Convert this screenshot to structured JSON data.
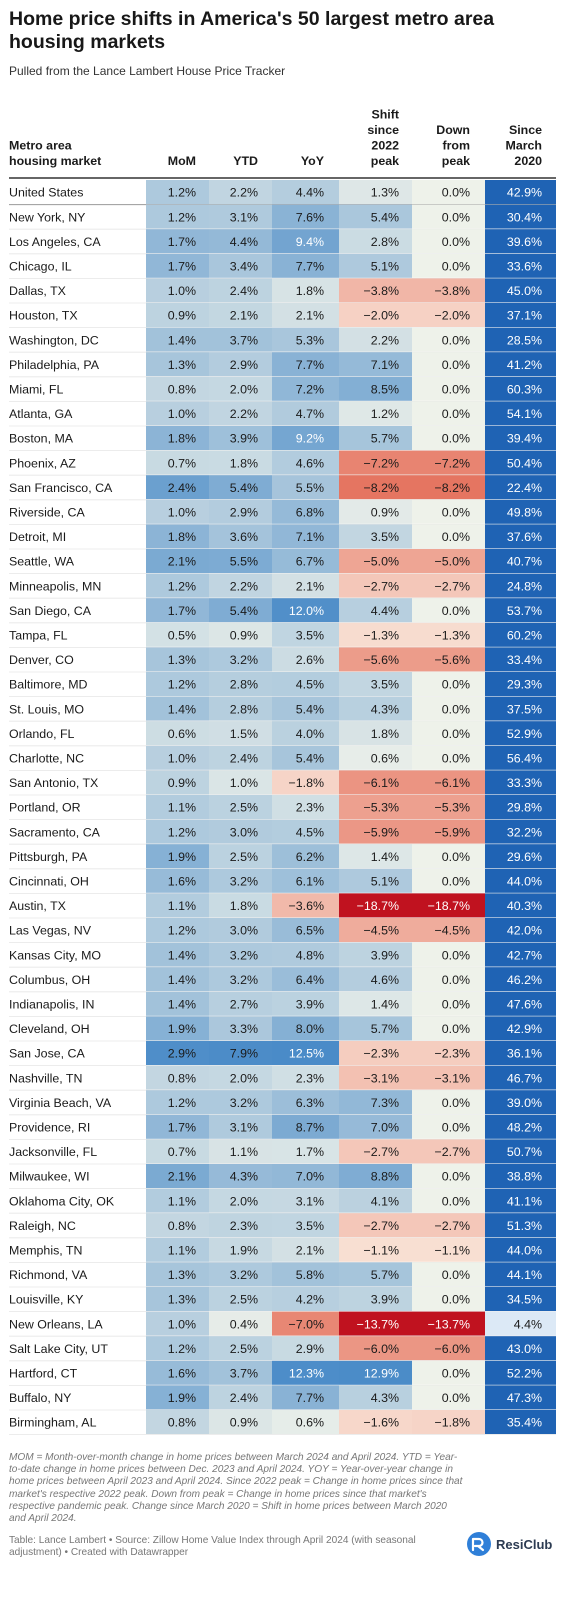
{
  "title": "Home price shifts in America's 50 largest metro area housing markets",
  "subtitle": "Pulled from the Lance Lambert House Price Tracker",
  "notes": "MOM = Month-over-month change in home prices between March 2024 and April 2024. YTD = Year-to-date change in home prices between Dec. 2023 and April 2024. YOY = Year-over-year change in home prices between April 2023 and April 2024. Since 2022 peak = Change in home prices since that market's respective 2022 peak. Down from peak = Change in home prices since that market's respective pandemic peak. Change since March 2020 = Shift in home prices between March 2020 and April 2024.",
  "source": "Table: Lance Lambert • Source: Zillow Home Value Index through April 2024 (with seasonal adjustment) • Created with Datawrapper",
  "logo": {
    "text": "ResiClub",
    "icon": "resiclub-logo-icon"
  },
  "colors": {
    "positive": "#4a8bc8",
    "negative": "#e05a44",
    "strong_negative": "#c0121f",
    "since_2020": "#1f63b4",
    "since_2020_light": "#dce9f6",
    "header_rule": "#333333",
    "row_rule": "#e6e6e6"
  },
  "chart_data": {
    "type": "table",
    "columns": [
      {
        "key": "market",
        "label": [
          "Metro area",
          "housing market"
        ]
      },
      {
        "key": "mom",
        "label": [
          "MoM"
        ]
      },
      {
        "key": "ytd",
        "label": [
          "YTD"
        ]
      },
      {
        "key": "yoy",
        "label": [
          "YoY"
        ]
      },
      {
        "key": "since2022",
        "label": [
          "Shift",
          "since",
          "2022",
          "peak"
        ]
      },
      {
        "key": "down",
        "label": [
          "Down",
          "from",
          "peak"
        ]
      },
      {
        "key": "since2020",
        "label": [
          "Since",
          "March",
          "2020"
        ]
      }
    ],
    "rows": [
      [
        "United States",
        "1.2%",
        "2.2%",
        "4.4%",
        "1.3%",
        "0.0%",
        "42.9%"
      ],
      [
        "New York, NY",
        "1.2%",
        "3.1%",
        "7.6%",
        "5.4%",
        "0.0%",
        "30.4%"
      ],
      [
        "Los Angeles, CA",
        "1.7%",
        "4.4%",
        "9.4%",
        "2.8%",
        "0.0%",
        "39.6%"
      ],
      [
        "Chicago, IL",
        "1.7%",
        "3.4%",
        "7.7%",
        "5.1%",
        "0.0%",
        "33.6%"
      ],
      [
        "Dallas, TX",
        "1.0%",
        "2.4%",
        "1.8%",
        "−3.8%",
        "−3.8%",
        "45.0%"
      ],
      [
        "Houston, TX",
        "0.9%",
        "2.1%",
        "2.1%",
        "−2.0%",
        "−2.0%",
        "37.1%"
      ],
      [
        "Washington, DC",
        "1.4%",
        "3.7%",
        "5.3%",
        "2.2%",
        "0.0%",
        "28.5%"
      ],
      [
        "Philadelphia, PA",
        "1.3%",
        "2.9%",
        "7.7%",
        "7.1%",
        "0.0%",
        "41.2%"
      ],
      [
        "Miami, FL",
        "0.8%",
        "2.0%",
        "7.2%",
        "8.5%",
        "0.0%",
        "60.3%"
      ],
      [
        "Atlanta, GA",
        "1.0%",
        "2.2%",
        "4.7%",
        "1.2%",
        "0.0%",
        "54.1%"
      ],
      [
        "Boston, MA",
        "1.8%",
        "3.9%",
        "9.2%",
        "5.7%",
        "0.0%",
        "39.4%"
      ],
      [
        "Phoenix, AZ",
        "0.7%",
        "1.8%",
        "4.6%",
        "−7.2%",
        "−7.2%",
        "50.4%"
      ],
      [
        "San Francisco, CA",
        "2.4%",
        "5.4%",
        "5.5%",
        "−8.2%",
        "−8.2%",
        "22.4%"
      ],
      [
        "Riverside, CA",
        "1.0%",
        "2.9%",
        "6.8%",
        "0.9%",
        "0.0%",
        "49.8%"
      ],
      [
        "Detroit, MI",
        "1.8%",
        "3.6%",
        "7.1%",
        "3.5%",
        "0.0%",
        "37.6%"
      ],
      [
        "Seattle, WA",
        "2.1%",
        "5.5%",
        "6.7%",
        "−5.0%",
        "−5.0%",
        "40.7%"
      ],
      [
        "Minneapolis, MN",
        "1.2%",
        "2.2%",
        "2.1%",
        "−2.7%",
        "−2.7%",
        "24.8%"
      ],
      [
        "San Diego, CA",
        "1.7%",
        "5.4%",
        "12.0%",
        "4.4%",
        "0.0%",
        "53.7%"
      ],
      [
        "Tampa, FL",
        "0.5%",
        "0.9%",
        "3.5%",
        "−1.3%",
        "−1.3%",
        "60.2%"
      ],
      [
        "Denver, CO",
        "1.3%",
        "3.2%",
        "2.6%",
        "−5.6%",
        "−5.6%",
        "33.4%"
      ],
      [
        "Baltimore, MD",
        "1.2%",
        "2.8%",
        "4.5%",
        "3.5%",
        "0.0%",
        "29.3%"
      ],
      [
        "St. Louis, MO",
        "1.4%",
        "2.8%",
        "5.4%",
        "4.3%",
        "0.0%",
        "37.5%"
      ],
      [
        "Orlando, FL",
        "0.6%",
        "1.5%",
        "4.0%",
        "1.8%",
        "0.0%",
        "52.9%"
      ],
      [
        "Charlotte, NC",
        "1.0%",
        "2.4%",
        "5.4%",
        "0.6%",
        "0.0%",
        "56.4%"
      ],
      [
        "San Antonio, TX",
        "0.9%",
        "1.0%",
        "−1.8%",
        "−6.1%",
        "−6.1%",
        "33.3%"
      ],
      [
        "Portland, OR",
        "1.1%",
        "2.5%",
        "2.3%",
        "−5.3%",
        "−5.3%",
        "29.8%"
      ],
      [
        "Sacramento, CA",
        "1.2%",
        "3.0%",
        "4.5%",
        "−5.9%",
        "−5.9%",
        "32.2%"
      ],
      [
        "Pittsburgh, PA",
        "1.9%",
        "2.5%",
        "6.2%",
        "1.4%",
        "0.0%",
        "29.6%"
      ],
      [
        "Cincinnati, OH",
        "1.6%",
        "3.2%",
        "6.1%",
        "5.1%",
        "0.0%",
        "44.0%"
      ],
      [
        "Austin, TX",
        "1.1%",
        "1.8%",
        "−3.6%",
        "−18.7%",
        "−18.7%",
        "40.3%"
      ],
      [
        "Las Vegas, NV",
        "1.2%",
        "3.0%",
        "6.5%",
        "−4.5%",
        "−4.5%",
        "42.0%"
      ],
      [
        "Kansas City, MO",
        "1.4%",
        "3.2%",
        "4.8%",
        "3.9%",
        "0.0%",
        "42.7%"
      ],
      [
        "Columbus, OH",
        "1.4%",
        "3.2%",
        "6.4%",
        "4.6%",
        "0.0%",
        "46.2%"
      ],
      [
        "Indianapolis, IN",
        "1.4%",
        "2.7%",
        "3.9%",
        "1.4%",
        "0.0%",
        "47.6%"
      ],
      [
        "Cleveland, OH",
        "1.9%",
        "3.3%",
        "8.0%",
        "5.7%",
        "0.0%",
        "42.9%"
      ],
      [
        "San Jose, CA",
        "2.9%",
        "7.9%",
        "12.5%",
        "−2.3%",
        "−2.3%",
        "36.1%"
      ],
      [
        "Nashville, TN",
        "0.8%",
        "2.0%",
        "2.3%",
        "−3.1%",
        "−3.1%",
        "46.7%"
      ],
      [
        "Virginia Beach, VA",
        "1.2%",
        "3.2%",
        "6.3%",
        "7.3%",
        "0.0%",
        "39.0%"
      ],
      [
        "Providence, RI",
        "1.7%",
        "3.1%",
        "8.7%",
        "7.0%",
        "0.0%",
        "48.2%"
      ],
      [
        "Jacksonville, FL",
        "0.7%",
        "1.1%",
        "1.7%",
        "−2.7%",
        "−2.7%",
        "50.7%"
      ],
      [
        "Milwaukee, WI",
        "2.1%",
        "4.3%",
        "7.0%",
        "8.8%",
        "0.0%",
        "38.8%"
      ],
      [
        "Oklahoma City, OK",
        "1.1%",
        "2.0%",
        "3.1%",
        "4.1%",
        "0.0%",
        "41.1%"
      ],
      [
        "Raleigh, NC",
        "0.8%",
        "2.3%",
        "3.5%",
        "−2.7%",
        "−2.7%",
        "51.3%"
      ],
      [
        "Memphis, TN",
        "1.1%",
        "1.9%",
        "2.1%",
        "−1.1%",
        "−1.1%",
        "44.0%"
      ],
      [
        "Richmond, VA",
        "1.3%",
        "3.2%",
        "5.8%",
        "5.7%",
        "0.0%",
        "44.1%"
      ],
      [
        "Louisville, KY",
        "1.3%",
        "2.5%",
        "4.2%",
        "3.9%",
        "0.0%",
        "34.5%"
      ],
      [
        "New Orleans, LA",
        "1.0%",
        "0.4%",
        "−7.0%",
        "−13.7%",
        "−13.7%",
        "4.4%"
      ],
      [
        "Salt Lake City, UT",
        "1.2%",
        "2.5%",
        "2.9%",
        "−6.0%",
        "−6.0%",
        "43.0%"
      ],
      [
        "Hartford, CT",
        "1.6%",
        "3.7%",
        "12.3%",
        "12.9%",
        "0.0%",
        "52.2%"
      ],
      [
        "Buffalo, NY",
        "1.9%",
        "2.4%",
        "7.7%",
        "4.3%",
        "0.0%",
        "47.3%"
      ],
      [
        "Birmingham, AL",
        "0.8%",
        "0.9%",
        "0.6%",
        "−1.6%",
        "−1.8%",
        "35.4%"
      ]
    ]
  }
}
